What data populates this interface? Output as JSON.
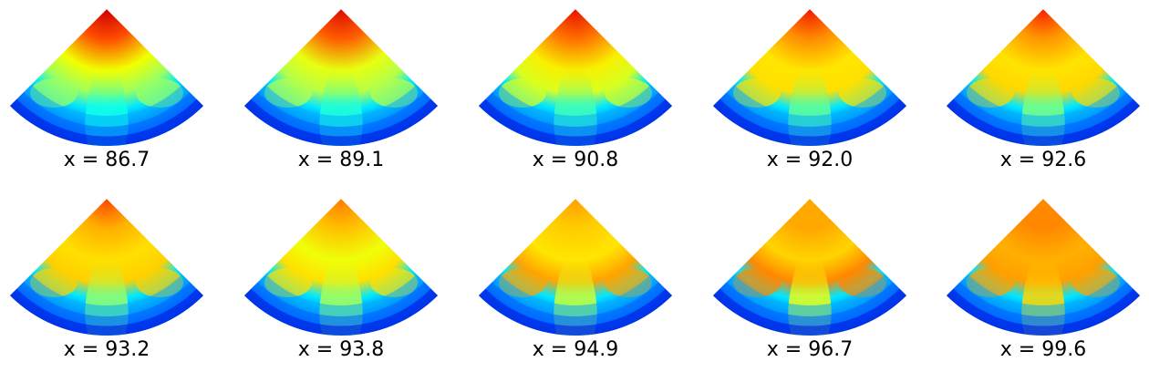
{
  "figure": {
    "panels": [
      {
        "label": "x = 86.7",
        "profile": {
          "apex": "#cc0000",
          "shoulder": "#ff4a00",
          "mid": "#f2ff00",
          "plume": "#10ffe8",
          "side": "#9cff60",
          "base": "#0000c8"
        }
      },
      {
        "label": "x = 89.1",
        "profile": {
          "apex": "#dd0a00",
          "shoulder": "#ff5c00",
          "mid": "#e8ff10",
          "plume": "#20ffd8",
          "side": "#b6ff48",
          "base": "#0000c8"
        }
      },
      {
        "label": "x = 90.8",
        "profile": {
          "apex": "#e81000",
          "shoulder": "#ff7000",
          "mid": "#f8f000",
          "plume": "#40ffb8",
          "side": "#d8ff20",
          "base": "#0000c8"
        }
      },
      {
        "label": "x = 92.0",
        "profile": {
          "apex": "#f01800",
          "shoulder": "#ff8c00",
          "mid": "#ffe600",
          "plume": "#60ff98",
          "side": "#ffe000",
          "base": "#0000c8"
        }
      },
      {
        "label": "x = 92.6",
        "profile": {
          "apex": "#f82000",
          "shoulder": "#ff9800",
          "mid": "#ffe400",
          "plume": "#78ff84",
          "side": "#ffd800",
          "base": "#0000c8"
        }
      },
      {
        "label": "x = 93.2",
        "profile": {
          "apex": "#ff4400",
          "shoulder": "#ffb000",
          "mid": "#ffe000",
          "plume": "#90ff70",
          "side": "#ffd000",
          "base": "#0000c8"
        }
      },
      {
        "label": "x = 93.8",
        "profile": {
          "apex": "#ff7a00",
          "shoulder": "#ffc000",
          "mid": "#f0ff08",
          "plume": "#a8ff58",
          "side": "#ffe000",
          "base": "#0000c8"
        }
      },
      {
        "label": "x = 94.9",
        "profile": {
          "apex": "#ffa000",
          "shoulder": "#ffcc00",
          "mid": "#ffe600",
          "plume": "#c8ff38",
          "side": "#ffa400",
          "base": "#0000c8"
        }
      },
      {
        "label": "x = 96.7",
        "profile": {
          "apex": "#ffa800",
          "shoulder": "#ffa800",
          "mid": "#ffd400",
          "plume": "#e8ff18",
          "side": "#ff8800",
          "base": "#0000c8"
        }
      },
      {
        "label": "x = 99.6",
        "profile": {
          "apex": "#ff8800",
          "shoulder": "#ff8800",
          "mid": "#ffb000",
          "plume": "#ffd800",
          "side": "#ffa000",
          "base": "#0000c8"
        }
      }
    ]
  }
}
